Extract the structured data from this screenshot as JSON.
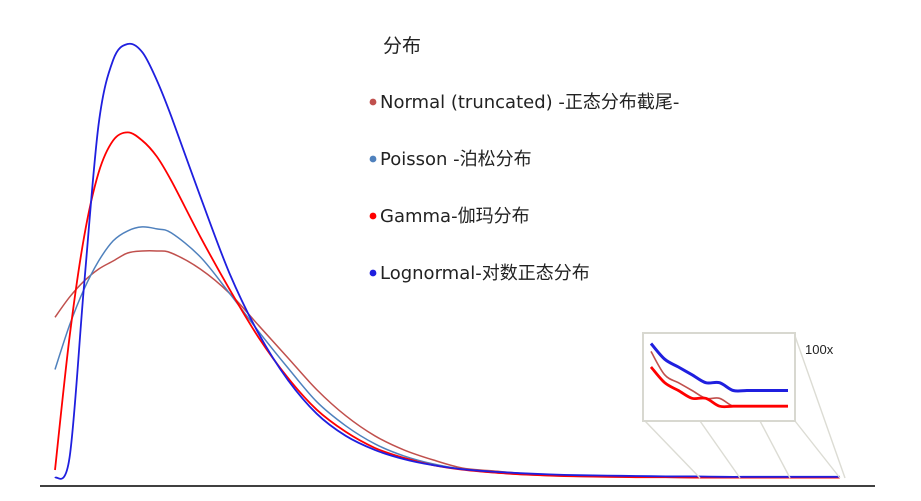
{
  "chart_data": {
    "type": "line",
    "title": "",
    "xlabel": "",
    "ylabel": "",
    "grid": false,
    "legend": {
      "title": "分布",
      "placement": "top-right"
    },
    "x": [
      0,
      0.5,
      1,
      1.5,
      2,
      2.5,
      3,
      3.5,
      4,
      5,
      6,
      7,
      8,
      9,
      10,
      11,
      12,
      13,
      14,
      15,
      16,
      17,
      18,
      19,
      20,
      21,
      22,
      23,
      24,
      25,
      26,
      27
    ],
    "ylim": [
      0,
      1.1
    ],
    "series": [
      {
        "name": "Normal (truncated) -正态分布截尾-",
        "color": "#c0504d",
        "values": [
          0.4,
          0.45,
          0.49,
          0.52,
          0.54,
          0.56,
          0.565,
          0.565,
          0.56,
          0.52,
          0.46,
          0.38,
          0.3,
          0.22,
          0.155,
          0.105,
          0.07,
          0.045,
          0.025,
          0.018,
          0.012,
          0.008,
          0.005,
          0.004,
          0.003,
          0.002,
          0.002,
          0.001,
          0.001,
          0.001,
          0.001,
          0.001
        ]
      },
      {
        "name": "Poisson -泊松分布",
        "color": "#4f81bd",
        "values": [
          0.27,
          0.38,
          0.47,
          0.54,
          0.59,
          0.615,
          0.625,
          0.62,
          0.61,
          0.55,
          0.46,
          0.365,
          0.275,
          0.19,
          0.13,
          0.085,
          0.055,
          0.035,
          0.022,
          0.014,
          0.009,
          0.006,
          0.004,
          0.003,
          0.002,
          0.002,
          0.001,
          0.001,
          0.001,
          0.001,
          0.001,
          0.001
        ]
      },
      {
        "name": "Gamma-伽玛分布",
        "color": "#ff0000",
        "values": [
          0.02,
          0.35,
          0.6,
          0.76,
          0.84,
          0.86,
          0.84,
          0.8,
          0.74,
          0.6,
          0.47,
          0.35,
          0.25,
          0.17,
          0.115,
          0.075,
          0.05,
          0.032,
          0.021,
          0.014,
          0.009,
          0.006,
          0.004,
          0.003,
          0.002,
          0.002,
          0.001,
          0.001,
          0.001,
          0.001,
          0.001,
          0.001
        ]
      },
      {
        "name": "Lognormal-对数正态分布",
        "color": "#1f1fdf",
        "values": [
          0.0,
          0.05,
          0.48,
          0.88,
          1.04,
          1.08,
          1.06,
          0.99,
          0.9,
          0.7,
          0.51,
          0.36,
          0.245,
          0.16,
          0.105,
          0.07,
          0.047,
          0.032,
          0.022,
          0.016,
          0.012,
          0.009,
          0.007,
          0.006,
          0.005,
          0.004,
          0.004,
          0.003,
          0.003,
          0.003,
          0.003,
          0.003
        ]
      }
    ],
    "annotations": [
      {
        "text": "100x"
      }
    ]
  }
}
